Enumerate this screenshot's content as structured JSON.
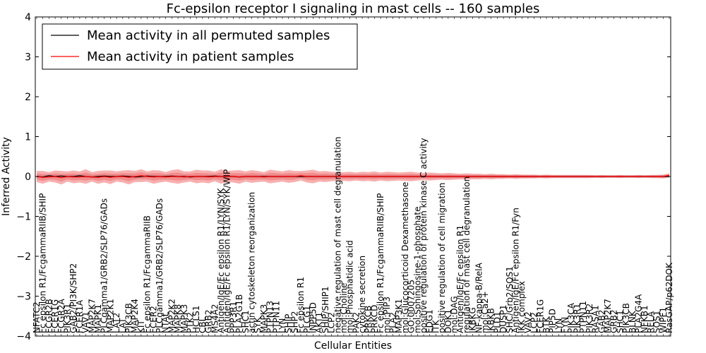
{
  "chart_data": {
    "type": "line",
    "title": "Fc-epsilon receptor I signaling in mast cells -- 160 samples",
    "xlabel": "Cellular Entities",
    "ylabel": "Inferred Activity",
    "ylim": [
      -4,
      4
    ],
    "yticks": [
      -4,
      -3,
      -2,
      -1,
      0,
      1,
      2,
      3,
      4
    ],
    "ytick_labels": [
      "−4",
      "−3",
      "−2",
      "−1",
      "0",
      "1",
      "2",
      "3",
      "4"
    ],
    "grid": false,
    "legend_position": "top-left",
    "legend": [
      {
        "label": "Mean activity in all permuted samples",
        "color": "#000000"
      },
      {
        "label": "Mean activity in patient samples",
        "color": "#ff0000"
      }
    ],
    "categories": [
      "NFATC2",
      "Fc epsilon R1/FcgammaRIIB/SHIP",
      "FCGR2B",
      "FCER1G",
      "FCGR2A",
      "PIK3R1",
      "GAB2/PI3K/SHP2",
      "FCER1A",
      "VAV1",
      "MAP2K7",
      "MAPK1",
      "PLCgamma1/GRB2/SLP76/GADs",
      "MAP2K1",
      "LAT2",
      "LAT",
      "PIK3CB",
      "MAP2K4",
      "KIT",
      "Fc epsilon R1/FcgammaRIIB",
      "FCER2",
      "PLCgamma1/GRB2/SLP76/GADs",
      "NTAL",
      "MAP2K2",
      "MAPK8",
      "MAPK3",
      "PTK2",
      "HCLS1",
      "CBL",
      "GRB2",
      "MS4A2",
      "Antigen/IgE/Fc epsilon R1/LYN/SYK",
      "Antigen/IgE/Fc epsilon R1/LYN/SYK/WIP",
      "PPP3R1",
      "PLA2G1B",
      "SHC1",
      "actin cytoskeleton reorganization",
      "SYK",
      "MAPK3",
      "PTPN13",
      "PTPN11",
      "LYN",
      "SHIP",
      "SHP2",
      "Fc epsilon R1",
      "PLCG1",
      "INPP5D",
      "AKT1",
      "SHIP/SHIP1",
      "LCP2",
      "negative regulation of mast cell degranulation",
      "mol:Choline",
      "mol:Phosphatidic acid",
      "PAK2",
      "cytokine secretion",
      "PRKCB",
      "PRKCD",
      "Fc epsilon R1/FcgammaRIIB/SHIP",
      "mol:PIP3",
      "PLA2",
      "MAP3K1",
      "mol:Glucocorticoid Dexamethasone",
      "GO:0007205",
      "mol:Sphingosine-1-phosphate",
      "positive regulation of protein kinase C activity",
      "EDG1",
      "ITK",
      "positive regulation of cell migration",
      "DOK1",
      "mol:DAG",
      "Antigen/IgE/Fc epsilon R1",
      "regulation of mast cell degranulation",
      "IKBKG",
      "NF-kappa-B/RelA",
      "mol:Ca2+",
      "IKBKB",
      "PLD1",
      "DUSP1",
      "SHC/Grb2/SOS1",
      "Antigen/IgE/Fc epsilon R1/Fyn",
      "IKK complex",
      "VAV2",
      "LCP2",
      "FCER1G",
      "BTK",
      "PIP5D",
      "LYN",
      "FYN",
      "PIK3CA",
      "PIK3R1",
      "PTPN11",
      "PIK3R2",
      "RASA1",
      "GAB2",
      "MAP2K7",
      "GRB2",
      "SHC1",
      "PIK3CB",
      "BLNK",
      "PLA2G4A",
      "NFKB1",
      "RELA",
      "SOS1",
      "WIPF1",
      "RasGAP/p62DOK"
    ],
    "series": [
      {
        "name": "Mean activity in all permuted samples",
        "color": "#000000",
        "values": [
          0.0,
          -0.01,
          0.02,
          0.0,
          0.01,
          0.0,
          0.0,
          0.02,
          0.0,
          -0.01,
          0.0,
          0.01,
          0.0,
          0.0,
          0.01,
          0.0,
          -0.01,
          0.0,
          0.01,
          0.0,
          0.0,
          0.0,
          0.01,
          0.0,
          0.0,
          -0.01,
          0.0,
          0.0,
          0.0,
          0.01,
          0.0,
          0.0,
          0.0,
          -0.01,
          0.0,
          0.0,
          0.0,
          0.0,
          0.0,
          0.0,
          0.0,
          0.0,
          0.0,
          0.0,
          0.0,
          0.0,
          0.0,
          0.0,
          0.0,
          0.0,
          0.0,
          0.0,
          0.0,
          0.0,
          0.0,
          0.0,
          0.0,
          0.0,
          0.0,
          0.0,
          0.0,
          0.0,
          0.0,
          0.0,
          0.0,
          0.0,
          0.0,
          0.0,
          0.0,
          0.0,
          0.0,
          0.0,
          0.0,
          0.0,
          0.0,
          0.0,
          0.0,
          0.0,
          0.0,
          0.0,
          0.0,
          0.0,
          0.0,
          0.0,
          0.0,
          0.0,
          0.0,
          0.0,
          0.0,
          0.0,
          0.0,
          0.0,
          0.0,
          0.0,
          0.0,
          0.0,
          0.0,
          0.0,
          0.0,
          0.0,
          0.0,
          0.0,
          0.0,
          0.0
        ]
      },
      {
        "name": "Mean activity in patient samples",
        "color": "#ff0000",
        "values": [
          0.0,
          -0.02,
          -0.01,
          0.0,
          -0.03,
          0.0,
          -0.01,
          -0.01,
          0.0,
          -0.01,
          -0.02,
          0.0,
          -0.02,
          0.0,
          0.0,
          -0.02,
          0.0,
          0.02,
          0.0,
          -0.01,
          0.0,
          -0.01,
          0.0,
          0.0,
          -0.01,
          0.0,
          0.0,
          0.0,
          -0.01,
          0.0,
          0.0,
          0.0,
          0.0,
          -0.01,
          0.0,
          0.0,
          0.0,
          -0.01,
          0.0,
          0.0,
          0.0,
          0.0,
          0.0,
          0.02,
          0.0,
          0.0,
          0.0,
          0.0,
          0.0,
          0.0,
          0.0,
          0.0,
          0.0,
          0.0,
          0.0,
          0.0,
          0.0,
          0.0,
          0.0,
          0.0,
          0.0,
          0.0,
          0.0,
          0.0,
          0.0,
          0.0,
          0.0,
          0.0,
          0.0,
          0.0,
          0.0,
          0.0,
          0.0,
          0.0,
          0.0,
          0.0,
          0.0,
          0.0,
          0.0,
          0.0,
          0.0,
          0.0,
          0.0,
          0.0,
          0.0,
          0.0,
          0.0,
          0.0,
          0.0,
          0.0,
          0.0,
          0.0,
          0.0,
          0.0,
          0.0,
          0.0,
          0.0,
          0.0,
          0.0,
          0.0,
          0.0,
          0.0,
          0.0,
          0.03
        ]
      }
    ],
    "band_data_units": "inferred activity",
    "permuted_band": {
      "halfwidth": [
        0.03,
        0.03,
        0.03,
        0.03,
        0.03,
        0.03,
        0.03,
        0.03,
        0.03,
        0.03,
        0.03,
        0.03,
        0.03,
        0.03,
        0.03,
        0.03,
        0.03,
        0.03,
        0.03,
        0.03,
        0.03,
        0.03,
        0.03,
        0.03,
        0.03,
        0.03,
        0.03,
        0.03,
        0.03,
        0.03,
        0.03,
        0.03,
        0.03,
        0.03,
        0.03,
        0.03,
        0.03,
        0.03,
        0.03,
        0.03,
        0.03,
        0.03,
        0.03,
        0.03,
        0.03,
        0.03,
        0.03,
        0.03,
        0.03,
        0.03,
        0.03,
        0.03,
        0.03,
        0.03,
        0.03,
        0.03,
        0.03,
        0.03,
        0.03,
        0.03,
        0.03,
        0.03,
        0.03,
        0.03,
        0.03,
        0.03,
        0.03,
        0.03,
        0.03,
        0.03,
        0.03,
        0.03,
        0.03,
        0.03,
        0.03,
        0.03,
        0.03,
        0.03,
        0.03,
        0.03,
        0.03,
        0.03,
        0.03,
        0.03,
        0.03,
        0.03,
        0.03,
        0.03,
        0.03,
        0.03,
        0.03,
        0.03,
        0.03,
        0.03,
        0.03,
        0.03,
        0.03,
        0.03,
        0.03,
        0.03,
        0.03,
        0.03,
        0.03,
        0.03
      ]
    },
    "patient_band": {
      "halfwidth": [
        0.14,
        0.16,
        0.12,
        0.15,
        0.17,
        0.13,
        0.16,
        0.14,
        0.18,
        0.12,
        0.16,
        0.15,
        0.17,
        0.13,
        0.15,
        0.18,
        0.14,
        0.16,
        0.13,
        0.17,
        0.15,
        0.12,
        0.16,
        0.18,
        0.14,
        0.13,
        0.17,
        0.15,
        0.16,
        0.12,
        0.18,
        0.14,
        0.15,
        0.17,
        0.13,
        0.16,
        0.14,
        0.12,
        0.17,
        0.15,
        0.13,
        0.16,
        0.14,
        0.12,
        0.15,
        0.17,
        0.13,
        0.14,
        0.12,
        0.11,
        0.11,
        0.12,
        0.1,
        0.12,
        0.11,
        0.13,
        0.1,
        0.12,
        0.11,
        0.1,
        0.11,
        0.12,
        0.1,
        0.09,
        0.1,
        0.09,
        0.08,
        0.09,
        0.08,
        0.07,
        0.08,
        0.07,
        0.07,
        0.06,
        0.07,
        0.06,
        0.06,
        0.05,
        0.06,
        0.05,
        0.05,
        0.05,
        0.04,
        0.05,
        0.04,
        0.04,
        0.04,
        0.04,
        0.04,
        0.04,
        0.04,
        0.03,
        0.04,
        0.03,
        0.03,
        0.04,
        0.03,
        0.03,
        0.04,
        0.03,
        0.04,
        0.04,
        0.05,
        0.05
      ]
    }
  }
}
